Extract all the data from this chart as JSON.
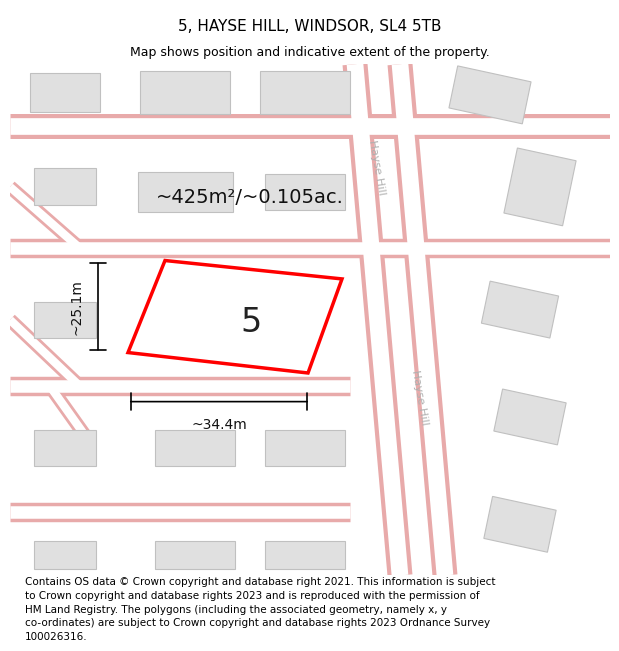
{
  "title": "5, HAYSE HILL, WINDSOR, SL4 5TB",
  "subtitle": "Map shows position and indicative extent of the property.",
  "footer": "Contains OS data © Crown copyright and database right 2021. This information is subject\nto Crown copyright and database rights 2023 and is reproduced with the permission of\nHM Land Registry. The polygons (including the associated geometry, namely x, y\nco-ordinates) are subject to Crown copyright and database rights 2023 Ordnance Survey\n100026316.",
  "bg_color": "#f2f2f2",
  "road_color": "#ffffff",
  "road_stroke": "#e8aaaa",
  "building_fill": "#e0e0e0",
  "building_stroke": "#c0c0c0",
  "plot_color": "#ff0000",
  "plot_fill": "#ffffff",
  "plot_label": "5",
  "area_text": "~425m²/~0.105ac.",
  "width_text": "~34.4m",
  "height_text": "~25.1m",
  "road_label_color": "#b0b0b0",
  "title_fontsize": 11,
  "subtitle_fontsize": 9,
  "footer_fontsize": 7.5,
  "label_fontsize": 10,
  "area_fontsize": 14,
  "plot_num_fontsize": 24,
  "road_label_fontsize": 8
}
